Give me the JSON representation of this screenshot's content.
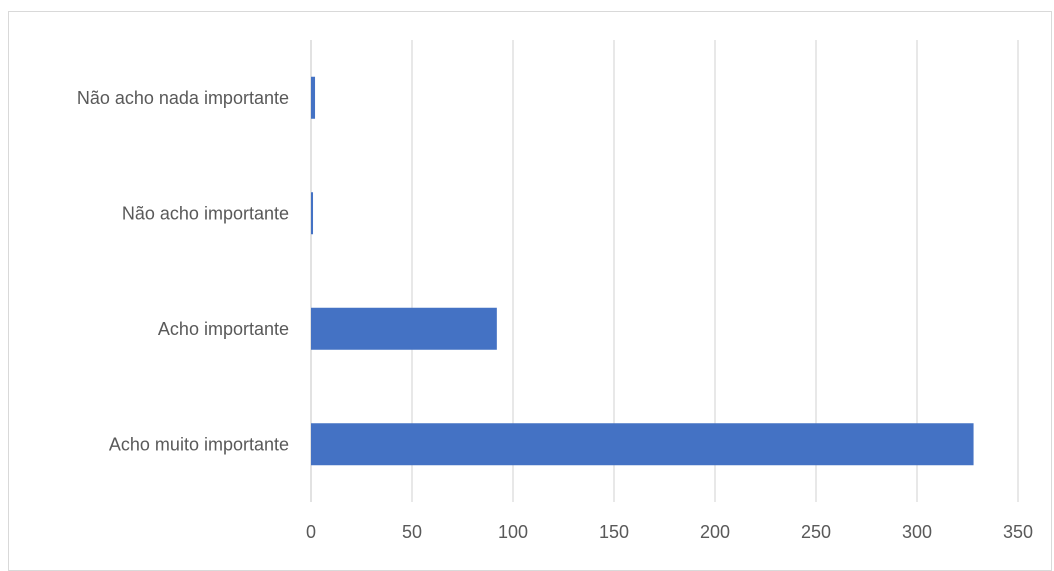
{
  "chart_data": {
    "type": "bar",
    "orientation": "horizontal",
    "categories": [
      "Não acho nada importante",
      "Não acho importante",
      "Acho importante",
      "Acho muito importante"
    ],
    "values": [
      2,
      1,
      92,
      328
    ],
    "xlim": [
      0,
      350
    ],
    "xticks": [
      "0",
      "50",
      "100",
      "150",
      "200",
      "250",
      "300",
      "350"
    ],
    "grid": "vertical",
    "bar_color": "#4472C4",
    "grid_color": "#d9d9d9"
  }
}
